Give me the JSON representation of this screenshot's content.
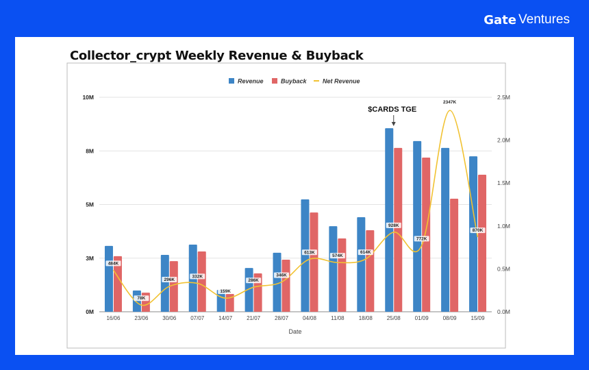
{
  "brand": {
    "name": "Gate",
    "suffix": "Ventures"
  },
  "page_title": "Collector_crypt Weekly Revenue & Buyback",
  "colors": {
    "background": "#0a50f2",
    "revenue": "#3d85c6",
    "buyback": "#e06666",
    "net_revenue": "#f1c232"
  },
  "chart_data": {
    "type": "bar",
    "title": "",
    "xlabel": "Date",
    "ylabel": "",
    "legend_position": "top",
    "grid": true,
    "categories": [
      "16/06",
      "23/06",
      "30/06",
      "07/07",
      "14/07",
      "21/07",
      "28/07",
      "04/08",
      "11/08",
      "18/08",
      "25/08",
      "01/09",
      "08/09",
      "15/09"
    ],
    "left_axis": {
      "ylim": [
        0,
        10000000
      ],
      "ticks": [
        0,
        2500000,
        5000000,
        7500000,
        10000000
      ],
      "tick_labels": [
        "0M",
        "3M",
        "5M",
        "8M",
        "10M"
      ]
    },
    "right_axis": {
      "ylim": [
        0,
        2500000
      ],
      "ticks": [
        0,
        500000,
        1000000,
        1500000,
        2000000,
        2500000
      ],
      "tick_labels": [
        "0.0M",
        "0.5M",
        "1.0M",
        "1.5M",
        "2.0M",
        "2.5M"
      ]
    },
    "series": [
      {
        "name": "Revenue",
        "type": "bar",
        "axis": "left",
        "values": [
          3070000,
          990000,
          2650000,
          3130000,
          1020000,
          2040000,
          2750000,
          5240000,
          3990000,
          4410000,
          8560000,
          7960000,
          7640000,
          7250000
        ]
      },
      {
        "name": "Buyback",
        "type": "bar",
        "axis": "left",
        "values": [
          2590000,
          890000,
          2360000,
          2810000,
          830000,
          1790000,
          2430000,
          4630000,
          3420000,
          3800000,
          7640000,
          7190000,
          5270000,
          6390000
        ]
      },
      {
        "name": "Net Revenue",
        "type": "line",
        "axis": "right",
        "values": [
          484000,
          78000,
          296000,
          332000,
          159000,
          286000,
          346000,
          613000,
          574000,
          614000,
          928000,
          772000,
          2347000,
          870000
        ],
        "data_labels": [
          "484K",
          "78K",
          "296K",
          "332K",
          "159K",
          "286K",
          "346K",
          "613K",
          "574K",
          "614K",
          "928K",
          "772K",
          "2347K",
          "870K"
        ]
      }
    ],
    "annotations": [
      {
        "text": "$CARDS TGE",
        "category": "25/08"
      }
    ]
  }
}
